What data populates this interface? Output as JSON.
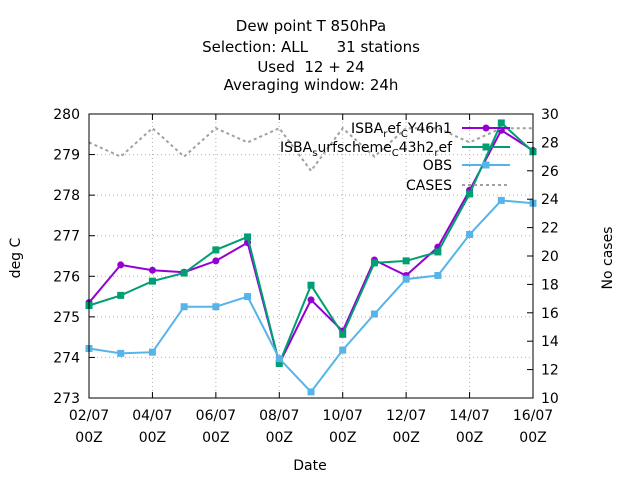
{
  "chart_data": {
    "type": "line",
    "title_lines": [
      "Dew point T 850hPa",
      "Selection: ALL      31 stations",
      "Used  12 + 24",
      "Averaging window: 24h"
    ],
    "xlabel": "Date",
    "ylabel": "deg C",
    "y2label": "No cases",
    "x_ticks": [
      {
        "x": 0,
        "line1": "02/07",
        "line2": "00Z"
      },
      {
        "x": 2,
        "line1": "04/07",
        "line2": "00Z"
      },
      {
        "x": 4,
        "line1": "06/07",
        "line2": "00Z"
      },
      {
        "x": 6,
        "line1": "08/07",
        "line2": "00Z"
      },
      {
        "x": 8,
        "line1": "10/07",
        "line2": "00Z"
      },
      {
        "x": 10,
        "line1": "12/07",
        "line2": "00Z"
      },
      {
        "x": 12,
        "line1": "14/07",
        "line2": "00Z"
      },
      {
        "x": 14,
        "line1": "16/07",
        "line2": "00Z"
      }
    ],
    "xlim": [
      0,
      14
    ],
    "ylim": [
      273,
      280
    ],
    "y_ticks": [
      273,
      274,
      275,
      276,
      277,
      278,
      279,
      280
    ],
    "y2lim": [
      10,
      30
    ],
    "y2_ticks": [
      10,
      12,
      14,
      16,
      18,
      20,
      22,
      24,
      26,
      28,
      30
    ],
    "grid": true,
    "legend_position": "top-right",
    "x": [
      0,
      1,
      2,
      3,
      4,
      5,
      6,
      7,
      8,
      9,
      10,
      11,
      12,
      13,
      14
    ],
    "series": [
      {
        "name_parts": [
          "ISBA",
          "r",
          "ef",
          "C",
          "Y46h1"
        ],
        "axis": "left",
        "color": "#9400d3",
        "marker": "circle",
        "dash": "",
        "values": [
          275.35,
          276.28,
          276.15,
          276.1,
          276.38,
          276.83,
          273.85,
          275.42,
          274.65,
          276.4,
          276.02,
          276.72,
          278.12,
          279.6,
          279.1
        ]
      },
      {
        "name_parts": [
          "ISBA",
          "s",
          "urfscheme",
          "C",
          "43h2",
          "r",
          "ef"
        ],
        "axis": "left",
        "color": "#009e73",
        "marker": "square",
        "dash": "",
        "values": [
          275.28,
          275.53,
          275.88,
          276.08,
          276.65,
          276.97,
          273.85,
          275.78,
          274.57,
          276.33,
          276.38,
          276.6,
          278.03,
          279.78,
          279.07
        ]
      },
      {
        "name_parts": [
          "OBS"
        ],
        "axis": "left",
        "color": "#56b4e9",
        "marker": "square",
        "dash": "",
        "values": [
          274.22,
          274.1,
          274.13,
          275.25,
          275.25,
          275.5,
          273.97,
          273.15,
          274.18,
          275.07,
          275.93,
          276.02,
          277.03,
          277.87,
          277.8
        ]
      },
      {
        "name_parts": [
          "CASES"
        ],
        "axis": "right",
        "color": "#a0a0a0",
        "marker": "none",
        "dash": "3,3",
        "values": [
          28,
          27,
          29,
          27,
          29,
          28,
          29,
          26,
          29,
          27,
          29,
          29,
          28,
          29,
          29
        ]
      }
    ]
  }
}
